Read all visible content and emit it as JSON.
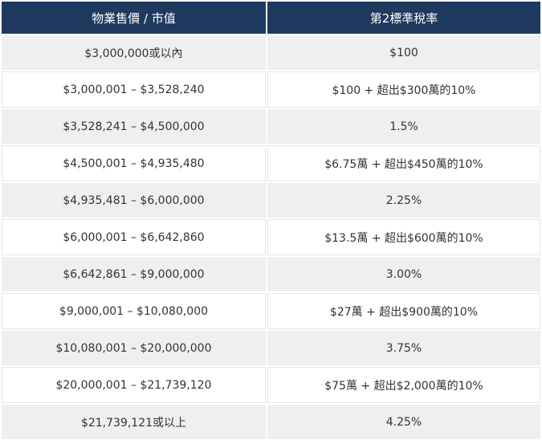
{
  "table": {
    "headers": [
      "物業售價 / 市值",
      "第2標準稅率"
    ],
    "rows": [
      [
        "$3,000,000或以內",
        "$100"
      ],
      [
        "$3,000,001 – $3,528,240",
        "$100 + 超出$300萬的10%"
      ],
      [
        "$3,528,241 – $4,500,000",
        "1.5%"
      ],
      [
        "$4,500,001 – $4,935,480",
        "$6.75萬 + 超出$450萬的10%"
      ],
      [
        "$4,935,481 – $6,000,000",
        "2.25%"
      ],
      [
        "$6,000,001 – $6,642,860",
        "$13.5萬 + 超出$600萬的10%"
      ],
      [
        "$6,642,861 – $9,000,000",
        "3.00%"
      ],
      [
        "$9,000,001 – $10,080,000",
        "$27萬 + 超出$900萬的10%"
      ],
      [
        "$10,080,001 – $20,000,000",
        "3.75%"
      ],
      [
        "$20,000,001 – $21,739,120",
        "$75萬 + 超出$2,000萬的10%"
      ],
      [
        "$21,739,121或以上",
        "4.25%"
      ]
    ]
  },
  "colors": {
    "header_bg": "#1e3a5f",
    "header_text": "#ffffff",
    "stripe_bg": "#efefef",
    "body_text": "#333333"
  }
}
